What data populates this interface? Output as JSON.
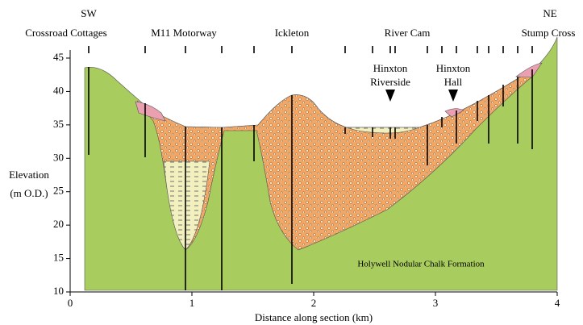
{
  "header": {
    "sw": "SW",
    "ne": "NE",
    "places": [
      "Crossroad Cottages",
      "M11 Motorway",
      "Ickleton",
      "River Cam",
      "Stump Cross"
    ]
  },
  "annotations": {
    "riverside": [
      "Hinxton",
      "Riverside"
    ],
    "hall": [
      "Hinxton",
      "Hall"
    ],
    "formation": "Holywell Nodular Chalk Formation"
  },
  "y_axis": {
    "label": [
      "Elevation",
      "(m O.D.)"
    ],
    "lim": [
      10,
      45
    ],
    "ticks": [
      10,
      15,
      20,
      25,
      30,
      35,
      40,
      45
    ]
  },
  "x_axis": {
    "label": "Distance along section (km)",
    "lim": [
      0,
      4
    ],
    "ticks": [
      0,
      1,
      2,
      3,
      4
    ]
  }
}
